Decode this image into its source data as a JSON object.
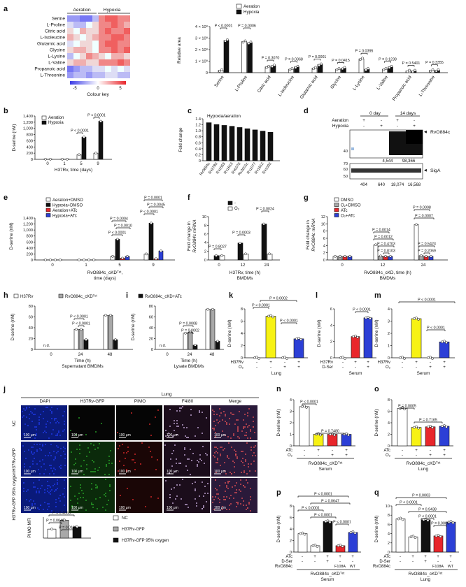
{
  "panel_letters": [
    "a",
    "b",
    "c",
    "d",
    "e",
    "f",
    "g",
    "h",
    "i",
    "k",
    "l",
    "m",
    "j",
    "n",
    "o",
    "p",
    "q"
  ],
  "a": {
    "heatmap_header": [
      "Aeration",
      "Hypoxia"
    ],
    "row_labels": [
      "Serine",
      "L-Proline",
      "Citric acid",
      "L-Isoleucine",
      "Glutamic acid",
      "Glycine",
      "L-Lysine",
      "L-Valine",
      "Propanoic acid",
      "L-Threonine"
    ],
    "colour_key_title": "Colour key",
    "colour_key_ticks": [
      "-5",
      "0",
      "5"
    ],
    "legend": [
      "Aeration",
      "Hypoxia"
    ],
    "ylabel": "Relative area",
    "yticks": [
      "0",
      "1 × 10⁸",
      "2 × 10⁸",
      "3 × 10⁸",
      "4 × 10⁸"
    ],
    "categories": [
      "Serine",
      "L-Proline",
      "Citric acid",
      "L-Isoleucine",
      "Glutamic acid",
      "Glycine",
      "L-Lysine",
      "L-Valine",
      "Propanoic acid",
      "L-Threonine"
    ],
    "pvalues": [
      "P < 0.0001",
      "P = 0.0006",
      "P = 0.3070",
      "P = 0.0368",
      "P = 0.0001",
      "P = 0.0415",
      "P = 0.0395",
      "P = 0.1238",
      "P = 0.5401",
      "P = 0.3355"
    ]
  },
  "b": {
    "legend": [
      "Aeration",
      "Hypoxia"
    ],
    "ylabel": "D-serine (nM)",
    "xlabel": "H37Rv, time (days)",
    "xticks": [
      "0",
      "1",
      "5",
      "9"
    ],
    "yticks": [
      "0",
      "200",
      "400",
      "600",
      "800",
      "1,000",
      "1,200",
      "1,400"
    ],
    "pvalues": [
      "P < 0.0001",
      "P < 0.0001"
    ]
  },
  "c": {
    "title": "Hypoxia/aeration",
    "ylabel": "Fold change",
    "yticks": [
      "0",
      "0.2",
      "0.4",
      "0.6",
      "0.8",
      "1.0",
      "1.2",
      "1.4"
    ],
    "genes": [
      "Rv0884c",
      "Rv2780",
      "Rv1559",
      "Rv1613",
      "Rv0070",
      "Rv3001c",
      "Rv1077",
      "Rv1612",
      "Rv1093"
    ]
  },
  "d": {
    "col_headers": [
      "0 day",
      "14 days"
    ],
    "row_labels": [
      "Aeration",
      "Hypoxia"
    ],
    "signs_aeration": [
      "+",
      "-",
      "+",
      "-"
    ],
    "signs_hypoxia": [
      "-",
      "+",
      "-",
      "+"
    ],
    "band1": "RvO884c",
    "band2": "SigA",
    "mw_top": [
      "40"
    ],
    "mw_bottom": [
      "70",
      "60",
      "50"
    ],
    "quant1": [
      "4,544",
      "98,366"
    ],
    "quant2": [
      "404",
      "640",
      "18,074",
      "16,568"
    ]
  },
  "e": {
    "legend": [
      "Aeration+DMSO",
      "Hypoxia+DMSO",
      "Aeration+ATc",
      "Hypoxia+ATc"
    ],
    "ylabel": "D-serine (nM)",
    "xlabel1": "RvO884c_cKD",
    "xlabel2": "time (days)",
    "xticks": [
      "0",
      "1",
      "5",
      "9"
    ],
    "yticks": [
      "0",
      "200",
      "400",
      "600",
      "800",
      "1,000",
      "1,200",
      "1,400"
    ],
    "pvalues": [
      "P = 0.0004",
      "P = 0.0010",
      "P < 0.0001",
      "P = 0.0001",
      "P = 0.0045",
      "P < 0.0001"
    ]
  },
  "f": {
    "legend": [
      "-",
      "O₂"
    ],
    "ylabel1": "Fold change in",
    "ylabel2": "RvO884c mRNA",
    "xlabel1": "H37Rv, time (h)",
    "xlabel2": "BMDMs",
    "xticks": [
      "0",
      "12",
      "24"
    ],
    "yticks": [
      "0",
      "2",
      "4",
      "6",
      "8",
      "10"
    ],
    "pvalues": [
      "P = 0.8027",
      "P = 0.0003",
      "P = 0.0024"
    ]
  },
  "g": {
    "legend": [
      "DMSO",
      "O₂+DMSO",
      "ATc",
      "O₂+ATc"
    ],
    "ylabel1": "Fold change in",
    "ylabel2": "RvO884c mRNA",
    "xlabel1": "RvO884c_cKD, time (h)",
    "xlabel2": "BMDMs",
    "xticks": [
      "0",
      "12",
      "24"
    ],
    "yticks": [
      "0",
      "2",
      "4",
      "6",
      "8",
      "10",
      "12"
    ],
    "pvalues": [
      "P = 0.0014",
      "P = 0.0012",
      "P = 0.4703",
      "P = 0.8103",
      "P = 0.0008",
      "P = 0.0007",
      "P = 0.5423",
      "P = 0.2069"
    ]
  },
  "h": {
    "legend": [
      "H37Rv",
      "RvO884c_cKD"
    ],
    "ylabel": "D-serine (nM)",
    "xlabel1": "Time (h)",
    "xlabel2": "Supernatant BMDMs",
    "xticks": [
      "0",
      "24",
      "48"
    ],
    "yticks": [
      "0",
      "20",
      "40",
      "60",
      "80"
    ],
    "nd": "n.d.",
    "pvalues": [
      "P < 0.0001",
      "P < 0.0001"
    ]
  },
  "i": {
    "legend": "RvO884c_cKD+ATc",
    "ylabel": "D-serine (nM)",
    "xlabel1": "Time (h)",
    "xlabel2": "Lysate BMDMs",
    "xticks": [
      "0",
      "24",
      "48"
    ],
    "yticks": [
      "0",
      "20",
      "40",
      "60",
      "80"
    ],
    "nd": "n.d.",
    "pvalues": [
      "P = 0.0008",
      "P = 0.0002"
    ]
  },
  "k": {
    "ylabel": "D-serine (nM)",
    "yticks": [
      "0",
      "2",
      "4",
      "6",
      "8"
    ],
    "rows": [
      "H37Rv",
      "O₂"
    ],
    "signs_row1": [
      "-",
      "+",
      "-",
      "+"
    ],
    "signs_row2": [
      "-",
      "-",
      "+",
      "+"
    ],
    "xlabel": "Lung",
    "pvalues": [
      "P < 0.0001",
      "P = 0.0002",
      "P < 0.0001"
    ]
  },
  "l": {
    "ylabel": "D-serine (nM)",
    "yticks": [
      "0",
      "2",
      "4",
      "6"
    ],
    "rows": [
      "H37Rv",
      "D-Ser"
    ],
    "signs_row1": [
      "-",
      "+",
      "+"
    ],
    "signs_row2": [
      "-",
      "-",
      "+"
    ],
    "xlabel": "Serum",
    "pvalues": [
      "P < 0.0001"
    ]
  },
  "m": {
    "ylabel": "D-serine (nM)",
    "yticks": [
      "0",
      "1",
      "2",
      "3",
      "4"
    ],
    "rows": [
      "H37Rv",
      "O₂"
    ],
    "signs_row1": [
      "-",
      "+",
      "-",
      "+"
    ],
    "signs_row2": [
      "-",
      "-",
      "+",
      "+"
    ],
    "xlabel": "Serum",
    "pvalues": [
      "P < 0.0001",
      "P < 0.0001"
    ]
  },
  "j": {
    "title": "Lung",
    "columns": [
      "DAPI",
      "H37Rv-GFP",
      "PIMO",
      "F4/80",
      "Merge"
    ],
    "rows": [
      "NC",
      "H37Rv-GFP",
      "H37Rv-GFP 95% oxygen"
    ],
    "scale": "100 μm",
    "legend": [
      "NC",
      "H37Rv-GFP",
      "H37Rv-GFP 95% oxygen"
    ],
    "ylabel": "PIMO MFI",
    "pvalues": [
      "P = 0.4063",
      "P = 0.0046",
      "P = 0.0185"
    ]
  },
  "n": {
    "ylabel": "D-serine (nM)",
    "yticks": [
      "0",
      "1",
      "2",
      "3",
      "4"
    ],
    "rows": [
      "ATc",
      "O₂"
    ],
    "signs_row1": [
      "-",
      "+",
      "-",
      "+"
    ],
    "signs_row2": [
      "-",
      "-",
      "+",
      "+"
    ],
    "xlabel1": "RvO884c_cKD",
    "xlabel2": "Serum",
    "pvalues": [
      "P < 0.0001",
      "P = 0.7480"
    ]
  },
  "o": {
    "ylabel": "D-serine (nM)",
    "yticks": [
      "0",
      "2",
      "4",
      "6",
      "8"
    ],
    "rows": [
      "ATc",
      "O₂"
    ],
    "signs_row1": [
      "-",
      "+",
      "-",
      "+"
    ],
    "signs_row2": [
      "-",
      "-",
      "+",
      "+"
    ],
    "xlabel1": "RvO884c_cKD",
    "xlabel2": "Lung",
    "pvalues": [
      "P = 0.0005",
      "P = 0.7165"
    ]
  },
  "p": {
    "ylabel": "D-serine (nM)",
    "yticks": [
      "0",
      "2",
      "4",
      "6",
      "8"
    ],
    "rows": [
      "ATc",
      "D-Ser",
      "RvO884c"
    ],
    "signs_row1": [
      "-",
      "+",
      "+",
      "+",
      "+"
    ],
    "signs_row2": [
      "-",
      "-",
      "+",
      "-",
      "-"
    ],
    "row3": [
      "F108A",
      "WT"
    ],
    "xlabel1": "RvO884c_cKD",
    "xlabel2": "Serum",
    "pvalues": [
      "P < 0.0001",
      "P = 0.0647",
      "P < 0.0001",
      "P < 0.0001",
      "P < 0.0001"
    ]
  },
  "q": {
    "ylabel": "D-serine (nM)",
    "yticks": [
      "0",
      "2",
      "4",
      "6",
      "8",
      "10"
    ],
    "rows": [
      "ATc",
      "D-Ser",
      "RvO884c"
    ],
    "signs_row1": [
      "-",
      "+",
      "+",
      "+",
      "+"
    ],
    "signs_row2": [
      "-",
      "-",
      "+",
      "-",
      "-"
    ],
    "row3": [
      "F108A",
      "WT"
    ],
    "xlabel1": "RvO884c_cKD",
    "xlabel2": "Lung",
    "pvalues": [
      "P = 0.0003",
      "P < 0.0001",
      "P = 0.9438",
      "P < 0.0001",
      "P = 0.0006"
    ]
  },
  "colors": {
    "aeration": "#ffffff",
    "hypoxia": "#111111",
    "red": "#e8262b",
    "blue": "#2c3fd6",
    "grey": "#a8a8a8",
    "yellow": "#f7f213"
  },
  "chart_data": [
    {
      "panel": "a",
      "type": "bar",
      "categories": [
        "Serine",
        "L-Proline",
        "Citric acid",
        "L-Isoleucine",
        "Glutamic acid",
        "Glycine",
        "L-Lysine",
        "L-Valine",
        "Propanoic acid",
        "L-Threonine"
      ],
      "series": [
        {
          "name": "Aeration",
          "values": [
            0.2,
            2.7,
            0.5,
            0.3,
            0.4,
            0.3,
            1.2,
            0.3,
            0.15,
            0.2
          ]
        },
        {
          "name": "Hypoxia",
          "values": [
            2.8,
            2.6,
            0.6,
            0.5,
            0.7,
            0.4,
            0.3,
            0.5,
            0.15,
            0.2
          ]
        }
      ],
      "ylabel": "Relative area",
      "ylim": [
        0,
        4
      ]
    },
    {
      "panel": "b",
      "type": "bar",
      "categories": [
        "0",
        "1",
        "5",
        "9"
      ],
      "series": [
        {
          "name": "Aeration",
          "values": [
            5,
            5,
            150,
            200
          ]
        },
        {
          "name": "Hypoxia",
          "values": [
            5,
            5,
            720,
            1230
          ]
        }
      ],
      "xlabel": "H37Rv, time (days)",
      "ylabel": "D-serine (nM)",
      "ylim": [
        0,
        1400
      ]
    },
    {
      "panel": "c",
      "type": "bar",
      "categories": [
        "Rv0884c",
        "Rv2780",
        "Rv1559",
        "Rv1613",
        "Rv0070",
        "Rv3001c",
        "Rv1077",
        "Rv1612",
        "Rv1093"
      ],
      "values": [
        1.27,
        1.21,
        1.18,
        1.15,
        1.11,
        1.07,
        1.03,
        0.99,
        0.95
      ],
      "ylabel": "Fold change",
      "ylim": [
        0,
        1.4
      ]
    },
    {
      "panel": "e",
      "type": "bar",
      "categories": [
        "0",
        "1",
        "5",
        "9"
      ],
      "series": [
        {
          "name": "Aeration+DMSO",
          "values": [
            5,
            5,
            120,
            200
          ]
        },
        {
          "name": "Hypoxia+DMSO",
          "values": [
            5,
            5,
            690,
            1230
          ]
        },
        {
          "name": "Aeration+ATc",
          "values": [
            5,
            5,
            60,
            40
          ]
        },
        {
          "name": "Hypoxia+ATc",
          "values": [
            5,
            5,
            120,
            300
          ]
        }
      ],
      "ylabel": "D-serine (nM)",
      "ylim": [
        0,
        1400
      ]
    },
    {
      "panel": "f",
      "type": "bar",
      "categories": [
        "0",
        "12",
        "24"
      ],
      "series": [
        {
          "name": "-",
          "values": [
            1,
            3.9,
            8.3
          ]
        },
        {
          "name": "O₂",
          "values": [
            1,
            1.4,
            1.4
          ]
        }
      ],
      "ylabel": "Fold change in RvO884c mRNA",
      "ylim": [
        0,
        10
      ]
    },
    {
      "panel": "g",
      "type": "bar",
      "categories": [
        "0",
        "12",
        "24"
      ],
      "series": [
        {
          "name": "DMSO",
          "values": [
            1,
            4.2,
            9.8
          ]
        },
        {
          "name": "O₂+DMSO",
          "values": [
            1,
            1.1,
            1.2
          ]
        },
        {
          "name": "ATc",
          "values": [
            1,
            1,
            1
          ]
        },
        {
          "name": "O₂+ATc",
          "values": [
            1,
            1,
            1
          ]
        }
      ],
      "ylabel": "Fold change in RvO884c mRNA",
      "ylim": [
        0,
        12
      ]
    },
    {
      "panel": "h",
      "type": "bar",
      "categories": [
        "0",
        "24",
        "48"
      ],
      "series": [
        {
          "name": "H37Rv",
          "values": [
            0,
            37,
            63
          ]
        },
        {
          "name": "RvO884c_cKD",
          "values": [
            0,
            37,
            63
          ]
        },
        {
          "name": "RvO884c_cKD+ATc",
          "values": [
            0,
            18,
            18
          ]
        }
      ],
      "ylabel": "D-serine (nM)",
      "ylim": [
        0,
        80
      ]
    },
    {
      "panel": "i",
      "type": "bar",
      "categories": [
        "0",
        "24",
        "48"
      ],
      "series": [
        {
          "name": "H37Rv",
          "values": [
            0,
            30,
            74
          ]
        },
        {
          "name": "RvO884c_cKD",
          "values": [
            0,
            32,
            74
          ]
        },
        {
          "name": "RvO884c_cKD+ATc",
          "values": [
            0,
            8,
            15
          ]
        }
      ],
      "ylabel": "D-serine (nM)",
      "ylim": [
        0,
        80
      ]
    },
    {
      "panel": "k",
      "type": "bar",
      "values": [
        0,
        6.8,
        0,
        3.1
      ],
      "ylabel": "D-serine (nM)",
      "ylim": [
        0,
        8
      ]
    },
    {
      "panel": "l",
      "type": "bar",
      "values": [
        0,
        2.6,
        4.9
      ],
      "ylabel": "D-serine (nM)",
      "ylim": [
        0,
        6
      ]
    },
    {
      "panel": "m",
      "type": "bar",
      "values": [
        0,
        3.2,
        0,
        1.3
      ],
      "ylabel": "D-serine (nM)",
      "ylim": [
        0,
        4
      ]
    },
    {
      "panel": "j",
      "type": "bar",
      "categories": [
        "NC",
        "H37Rv-GFP",
        "H37Rv-GFP 95% oxygen"
      ],
      "values": [
        0.6,
        1.2,
        0.75
      ],
      "ylabel": "PIMO MFI"
    },
    {
      "panel": "n",
      "type": "bar",
      "values": [
        3.4,
        1.0,
        1.0,
        1.0
      ],
      "ylabel": "D-serine (nM)",
      "ylim": [
        0,
        4
      ]
    },
    {
      "panel": "o",
      "type": "bar",
      "values": [
        6.5,
        3.2,
        3.3,
        3.4
      ],
      "ylabel": "D-serine (nM)",
      "ylim": [
        0,
        8
      ]
    },
    {
      "panel": "p",
      "type": "bar",
      "values": [
        3.2,
        1.1,
        5.3,
        1.1,
        3.4
      ],
      "ylabel": "D-serine (nM)",
      "ylim": [
        0,
        8
      ]
    },
    {
      "panel": "q",
      "type": "bar",
      "values": [
        7.2,
        3.3,
        7.0,
        3.5,
        6.5
      ],
      "ylabel": "D-serine (nM)",
      "ylim": [
        0,
        10
      ]
    }
  ]
}
